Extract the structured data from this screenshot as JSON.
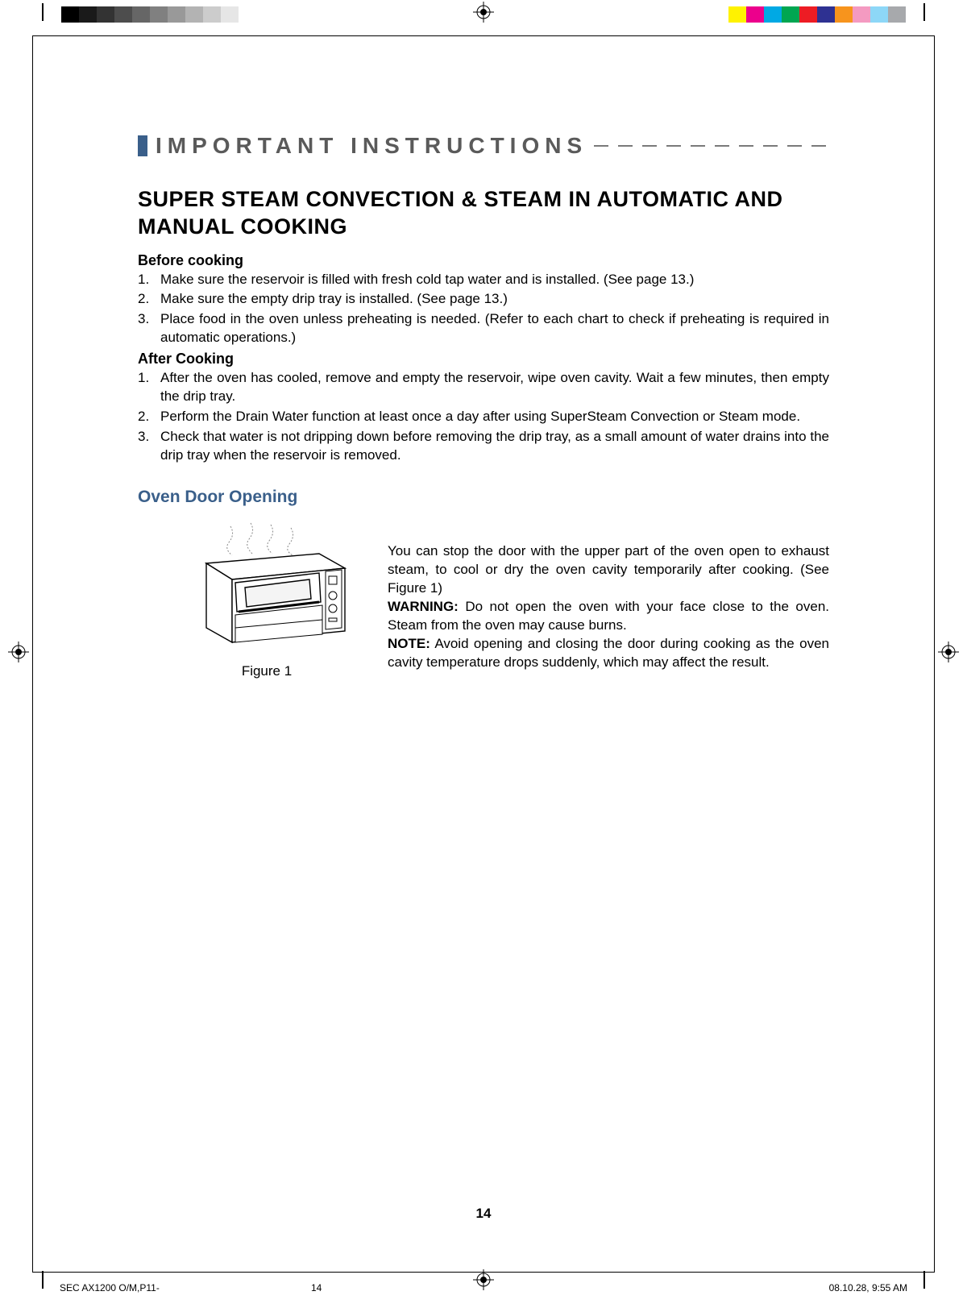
{
  "registration": {
    "gray_swatches": [
      "#000000",
      "#1a1a1a",
      "#333333",
      "#4d4d4d",
      "#666666",
      "#808080",
      "#999999",
      "#b3b3b3",
      "#cccccc",
      "#e6e6e6"
    ],
    "color_swatches": [
      "#fff200",
      "#ec008c",
      "#00a9e4",
      "#00a651",
      "#ed1c24",
      "#2e3192",
      "#f7941d",
      "#f49ac1",
      "#8dd7f7",
      "#a7a9ac"
    ]
  },
  "section_header": {
    "label": "IMPORTANT INSTRUCTIONS",
    "bar_color": "#3a5f8a",
    "text_color": "#5a5a5a",
    "dash_color": "#7a7a7a"
  },
  "main_heading": "SUPER STEAM CONVECTION & STEAM IN AUTOMATIC AND MANUAL COOKING",
  "before": {
    "title": "Before cooking",
    "items": [
      "Make sure the reservoir is filled with fresh cold tap water and is installed. (See page 13.)",
      "Make sure the empty drip tray is installed. (See page 13.)",
      "Place food in the oven unless preheating is needed. (Refer to each chart to check if preheating is required in automatic operations.)"
    ]
  },
  "after": {
    "title": "After Cooking",
    "items": [
      "After the oven has cooled, remove and empty the reservoir, wipe oven cavity. Wait a few minutes, then empty the drip tray.",
      "Perform the Drain Water function at least once a day after using SuperSteam Convection or Steam mode.",
      "Check that water is not dripping down before removing the drip tray, as a small amount of water drains into the drip tray when the reservoir is removed."
    ]
  },
  "door": {
    "heading": "Oven Door Opening",
    "heading_color": "#3a5f8a",
    "figure_caption": "Figure 1",
    "para1": "You can stop the door with the upper part of the oven open to exhaust steam, to cool or dry the oven cavity temporarily after cooking. (See  Figure 1)",
    "warn_label": "WARNING:",
    "warn_text": " Do not open the oven with your face close to the oven. Steam from the oven may cause burns.",
    "note_label": "NOTE:",
    "note_text": " Avoid opening and closing the door during cooking as the oven cavity temperature drops suddenly, which may affect the result."
  },
  "page_number": "14",
  "footer": {
    "left": "SEC AX1200 O/M,P11-",
    "mid": "14",
    "right": "08.10.28, 9:55 AM"
  }
}
